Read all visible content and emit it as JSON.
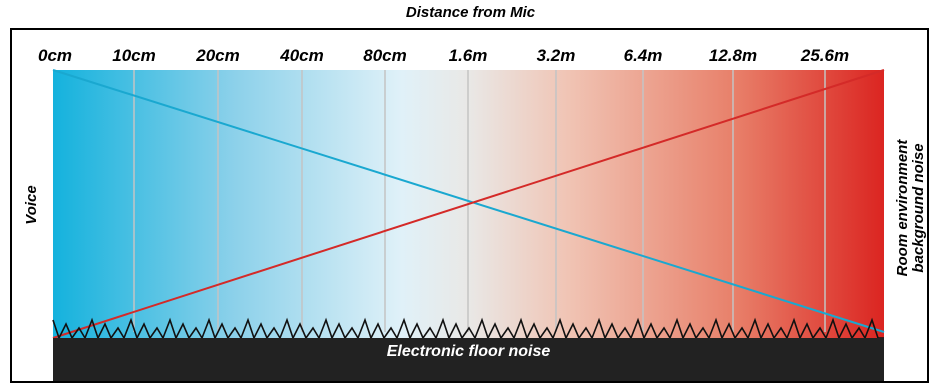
{
  "title": "Distance from Mic",
  "distance_labels": [
    "0cm",
    "10cm",
    "20cm",
    "40cm",
    "80cm",
    "1.6m",
    "3.2m",
    "6.4m",
    "12.8m",
    "25.6m"
  ],
  "voice_label": "Voice",
  "room_label_line1": "Room environment",
  "room_label_line2": "background noise",
  "floor_label": "Electronic floor noise",
  "colors": {
    "voice": "#19b4de",
    "voice_line": "#1aa8d0",
    "noise": "#e02a26",
    "noise_line": "#d42a28",
    "neutral": "#e8ecee",
    "floor": "#222222",
    "gridline": "#c4c4c4"
  }
}
